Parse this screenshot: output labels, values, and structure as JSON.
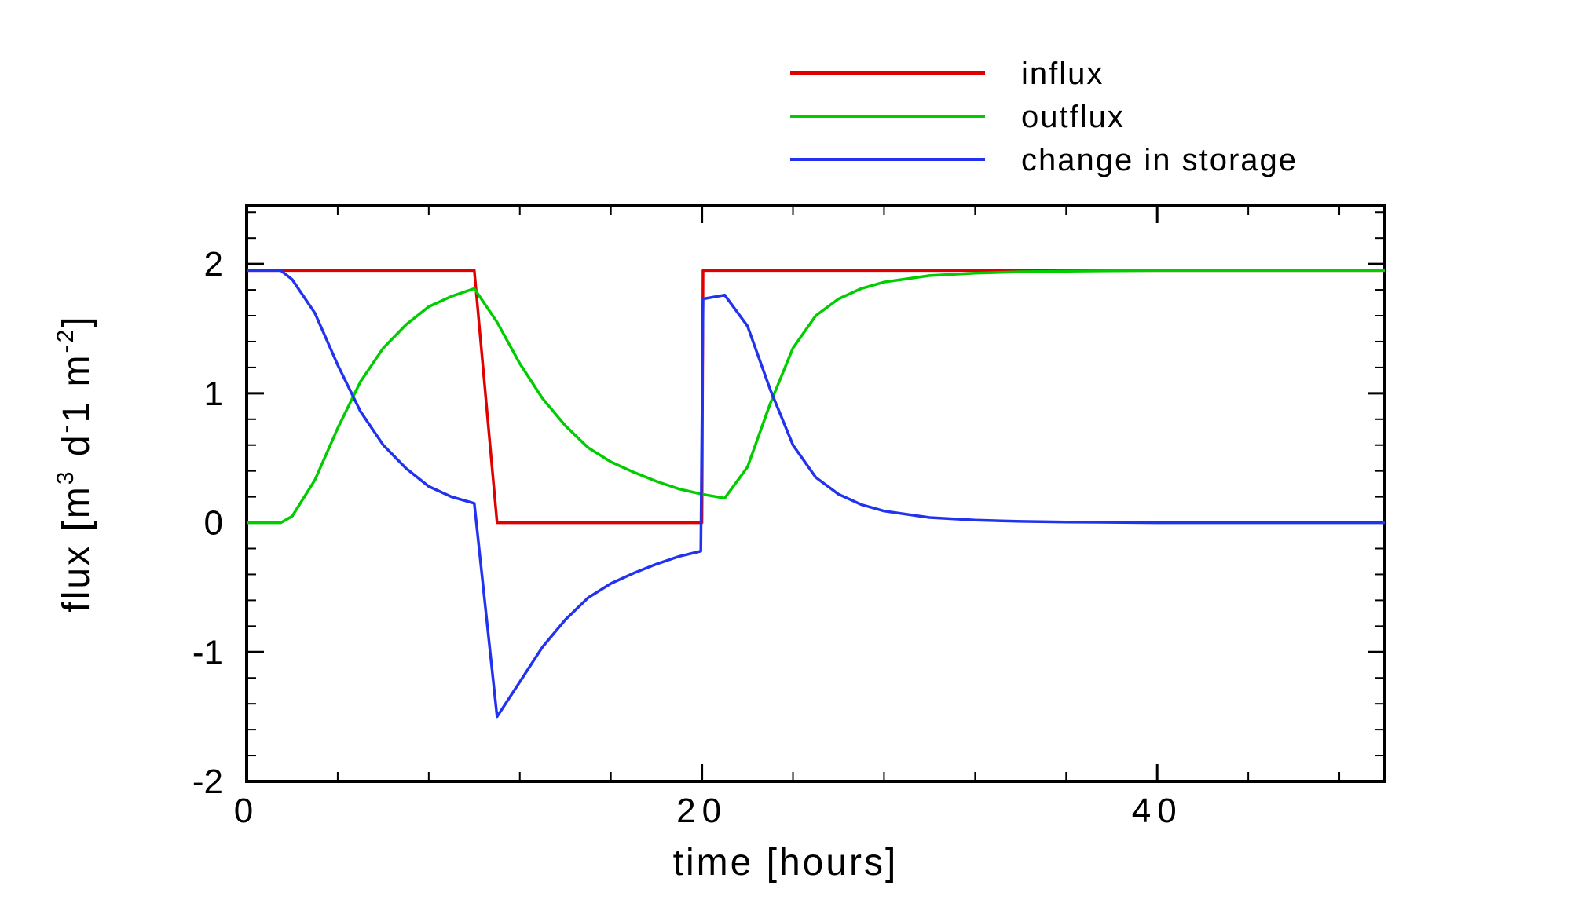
{
  "chart_data": {
    "type": "line",
    "xlabel": "time [hours]",
    "ylabel": {
      "base": "flux [m",
      "sup1": "3",
      "mid": " d",
      "sup2": "-",
      "mid2": "1 m",
      "sup3": "-2",
      "end": "]"
    },
    "xlim": [
      0,
      50
    ],
    "ylim": [
      -2,
      2
    ],
    "xticks": [
      0,
      20,
      40
    ],
    "yticks": [
      -2,
      -1,
      0,
      1,
      2
    ],
    "x_minor_step": 4,
    "y_minor_step": 0.2,
    "grid": false,
    "legend_position": "top-right, above plot",
    "series": [
      {
        "name": "influx",
        "color": "#e00000",
        "x": [
          0,
          10,
          11,
          20,
          20.05,
          50
        ],
        "y": [
          1.95,
          1.95,
          0,
          0,
          1.95,
          1.95
        ]
      },
      {
        "name": "outflux",
        "color": "#00cc00",
        "x": [
          0,
          1.5,
          2,
          3,
          4,
          5,
          6,
          7,
          8,
          9,
          10,
          11,
          12,
          13,
          14,
          15,
          16,
          17,
          18,
          19,
          20,
          21,
          22,
          23,
          24,
          25,
          26,
          27,
          28,
          30,
          32,
          34,
          36,
          40,
          45,
          50
        ],
        "y": [
          0,
          0,
          0.05,
          0.33,
          0.73,
          1.09,
          1.35,
          1.53,
          1.67,
          1.75,
          1.81,
          1.55,
          1.23,
          0.96,
          0.75,
          0.58,
          0.47,
          0.39,
          0.32,
          0.26,
          0.22,
          0.19,
          0.43,
          0.92,
          1.35,
          1.6,
          1.73,
          1.81,
          1.86,
          1.91,
          1.93,
          1.94,
          1.945,
          1.95,
          1.95,
          1.95
        ]
      },
      {
        "name": "change in storage",
        "color": "#2233ee",
        "x": [
          0,
          1.5,
          2,
          3,
          4,
          5,
          6,
          7,
          8,
          9,
          10,
          11,
          12,
          13,
          14,
          15,
          16,
          17,
          18,
          19,
          19.95,
          20.05,
          21,
          22,
          23,
          24,
          25,
          26,
          27,
          28,
          30,
          32,
          34,
          36,
          40,
          45,
          50
        ],
        "y": [
          1.95,
          1.95,
          1.88,
          1.62,
          1.22,
          0.86,
          0.6,
          0.42,
          0.28,
          0.2,
          0.15,
          -1.5,
          -1.23,
          -0.96,
          -0.75,
          -0.58,
          -0.47,
          -0.39,
          -0.32,
          -0.26,
          -0.22,
          1.73,
          1.76,
          1.52,
          1.03,
          0.6,
          0.35,
          0.22,
          0.14,
          0.09,
          0.04,
          0.02,
          0.01,
          0.005,
          0,
          0,
          0
        ]
      }
    ]
  }
}
